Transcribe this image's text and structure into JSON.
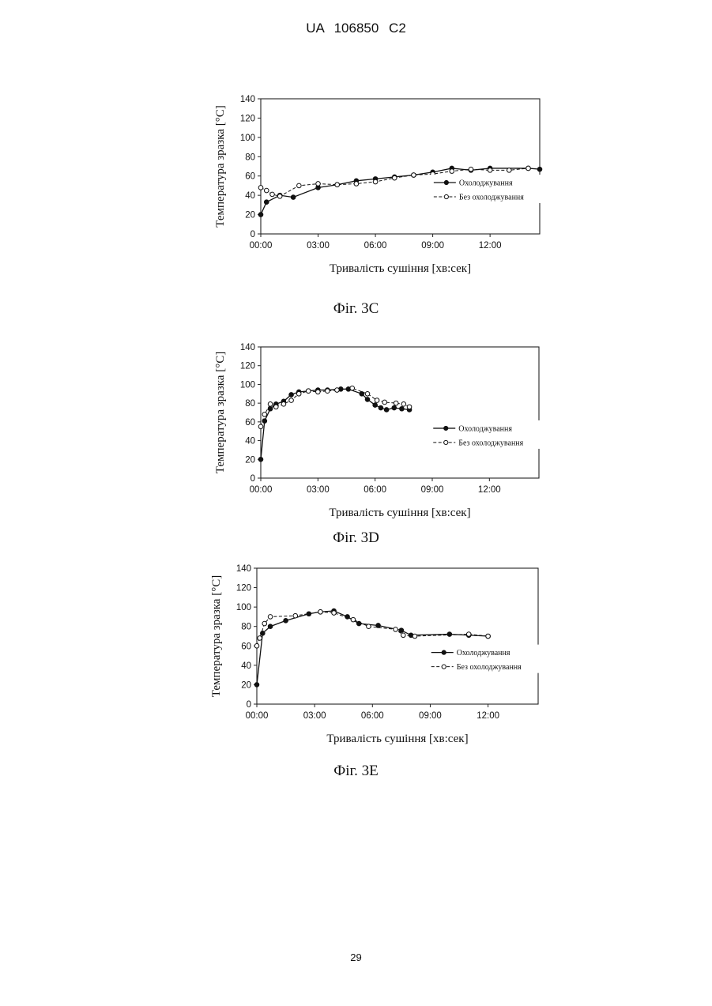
{
  "document": {
    "header": "UA 106850 C2",
    "page_number": "29"
  },
  "chart_data": [
    {
      "type": "line",
      "caption": "Фіг. 3С",
      "xlabel": "Тривалість сушіння [хв:сек]",
      "ylabel": "Температура зразка [°C]",
      "xlim": [
        0,
        14.6
      ],
      "ylim": [
        0,
        140
      ],
      "yticks": [
        "0",
        "20",
        "40",
        "60",
        "80",
        "100",
        "120",
        "140"
      ],
      "xticks": [
        {
          "v": 0,
          "label": "00:00"
        },
        {
          "v": 3,
          "label": "03:00"
        },
        {
          "v": 6,
          "label": "06:00"
        },
        {
          "v": 9,
          "label": "09:00"
        },
        {
          "v": 12,
          "label": "12:00"
        }
      ],
      "legend_position": "right",
      "series": [
        {
          "name": "Охолоджування",
          "style": "solid",
          "marker": "filled",
          "x": [
            0,
            0.3,
            1,
            1.7,
            3,
            4,
            5,
            6,
            7,
            8,
            9,
            10,
            11,
            12,
            14,
            14.6
          ],
          "y": [
            20,
            33,
            40,
            38,
            48,
            51,
            55,
            57,
            59,
            61,
            64,
            68,
            66,
            68,
            68,
            67
          ]
        },
        {
          "name": "Без охолоджування",
          "style": "dashed",
          "marker": "open",
          "x": [
            0,
            0.3,
            0.6,
            1,
            2,
            3,
            4,
            5,
            6,
            7,
            8,
            9,
            10,
            11,
            12,
            13,
            14
          ],
          "y": [
            48,
            45,
            41,
            39,
            50,
            52,
            51,
            52,
            54,
            58,
            61,
            62,
            65,
            67,
            66,
            66,
            68
          ]
        }
      ]
    },
    {
      "type": "line",
      "caption": "Фіг. 3D",
      "xlabel": "Тривалість сушіння [хв:сек]",
      "ylabel": "Температура зразка [°C]",
      "xlim": [
        0,
        14.6
      ],
      "ylim": [
        0,
        140
      ],
      "yticks": [
        "0",
        "20",
        "40",
        "60",
        "80",
        "100",
        "120",
        "140"
      ],
      "xticks": [
        {
          "v": 0,
          "label": "00:00"
        },
        {
          "v": 3,
          "label": "03:00"
        },
        {
          "v": 6,
          "label": "06:00"
        },
        {
          "v": 9,
          "label": "09:00"
        },
        {
          "v": 12,
          "label": "12:00"
        }
      ],
      "legend_position": "right",
      "series": [
        {
          "name": "Охолоджування",
          "style": "solid",
          "marker": "filled",
          "x": [
            0,
            0.2,
            0.5,
            0.8,
            1.2,
            1.6,
            2,
            2.5,
            3,
            3.5,
            4.2,
            4.6,
            5.3,
            5.6,
            6,
            6.3,
            6.6,
            7,
            7.4,
            7.8
          ],
          "y": [
            20,
            61,
            74,
            79,
            82,
            89,
            92,
            93,
            94,
            94,
            95,
            95,
            90,
            84,
            78,
            75,
            73,
            75,
            74,
            73
          ]
        },
        {
          "name": "Без охолоджування",
          "style": "dashed",
          "marker": "open",
          "x": [
            0,
            0.2,
            0.5,
            0.8,
            1.2,
            1.6,
            2,
            2.5,
            3,
            3.5,
            4,
            4.8,
            5.6,
            6.1,
            6.5,
            7.1,
            7.5,
            7.8
          ],
          "y": [
            55,
            68,
            79,
            76,
            79,
            83,
            90,
            93,
            92,
            93,
            94,
            96,
            90,
            83,
            81,
            80,
            79,
            76
          ]
        }
      ]
    },
    {
      "type": "line",
      "caption": "Фіг. 3Е",
      "xlabel": "Тривалість сушіння [хв:сек]",
      "ylabel": "Температура зразка [°C]",
      "xlim": [
        0,
        14.6
      ],
      "ylim": [
        0,
        140
      ],
      "yticks": [
        "0",
        "20",
        "40",
        "60",
        "80",
        "100",
        "120",
        "140"
      ],
      "xticks": [
        {
          "v": 0,
          "label": "00:00"
        },
        {
          "v": 3,
          "label": "03:00"
        },
        {
          "v": 6,
          "label": "06:00"
        },
        {
          "v": 9,
          "label": "09:00"
        },
        {
          "v": 12,
          "label": "12:00"
        }
      ],
      "legend_position": "right",
      "series": [
        {
          "name": "Охолоджування",
          "style": "solid",
          "marker": "filled",
          "x": [
            0,
            0.3,
            0.7,
            1.5,
            2.7,
            3.3,
            4,
            4.7,
            5.3,
            6.3,
            7.5,
            8,
            10,
            11,
            12
          ],
          "y": [
            20,
            73,
            80,
            86,
            93,
            95,
            96,
            90,
            83,
            81,
            76,
            71,
            72,
            71,
            70
          ]
        },
        {
          "name": "Без охолоджування",
          "style": "dashed",
          "marker": "open",
          "x": [
            0,
            0.15,
            0.4,
            0.7,
            2,
            3.3,
            4,
            5,
            5.8,
            7.2,
            7.6,
            8.2,
            11,
            12
          ],
          "y": [
            60,
            68,
            83,
            90,
            91,
            95,
            94,
            87,
            80,
            77,
            71,
            70,
            72,
            70
          ]
        }
      ]
    }
  ]
}
